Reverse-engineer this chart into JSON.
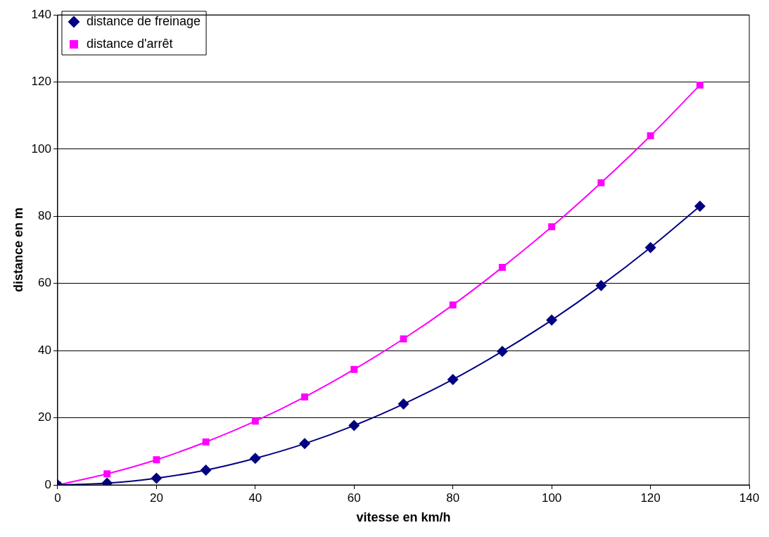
{
  "chart_data": {
    "type": "line",
    "xlabel": "vitesse en km/h",
    "ylabel": "distance en m",
    "x": [
      0,
      10,
      20,
      30,
      40,
      50,
      60,
      70,
      80,
      90,
      100,
      110,
      120,
      130
    ],
    "series": [
      {
        "name": "distance de freinage",
        "color": "#000080",
        "marker": "diamond",
        "values": [
          0,
          0.5,
          2,
          4.4,
          7.9,
          12.3,
          17.7,
          24.1,
          31.4,
          39.8,
          49.1,
          59.4,
          70.7,
          83
        ]
      },
      {
        "name": "distance d'arrêt",
        "color": "#ff00ff",
        "marker": "square",
        "values": [
          0,
          3.3,
          7.5,
          12.8,
          19,
          26.2,
          34.4,
          43.5,
          53.6,
          64.8,
          76.9,
          90,
          104,
          119.1
        ]
      }
    ],
    "xlim": [
      0,
      140
    ],
    "xticks": [
      0,
      20,
      40,
      60,
      80,
      100,
      120,
      140
    ],
    "ylim": [
      0,
      140
    ],
    "yticks": [
      0,
      20,
      40,
      60,
      80,
      100,
      120,
      140
    ],
    "grid": "y",
    "legend": "top left",
    "line_style": "solid"
  }
}
